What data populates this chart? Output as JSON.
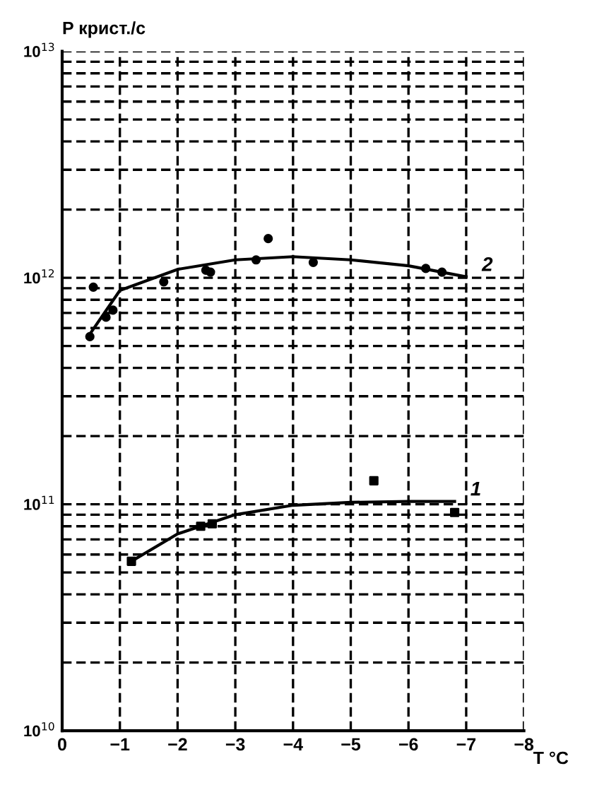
{
  "chart_data": {
    "type": "line",
    "ylabel": "P крист./с",
    "xlabel": "T °C",
    "log": "y",
    "grid": true,
    "xlim": [
      0,
      -8
    ],
    "xticks": [
      0,
      {
        "value": -1,
        "label": "−1"
      },
      {
        "value": -2,
        "label": "−2"
      },
      {
        "value": -3,
        "label": "−3"
      },
      {
        "value": -4,
        "label": "−4"
      },
      {
        "value": -5,
        "label": "−5"
      },
      {
        "value": -6,
        "label": "−6"
      },
      {
        "value": -7,
        "label": "−7"
      },
      {
        "value": -8,
        "label": "−8"
      }
    ],
    "ylim": [
      10000000000.0,
      10000000000000.0
    ],
    "yticks": [
      {
        "value": 10000000000.0,
        "label": "10$^{10}$"
      },
      {
        "value": 20000000000.0,
        "label": null
      },
      {
        "value": 30000000000.0,
        "label": null
      },
      {
        "value": 40000000000.0,
        "label": null
      },
      {
        "value": 50000000000.0,
        "label": null
      },
      {
        "value": 60000000000.0,
        "label": null
      },
      {
        "value": 70000000000.0,
        "label": null
      },
      {
        "value": 80000000000.0,
        "label": null
      },
      {
        "value": 90000000000.0,
        "label": null
      },
      {
        "value": 100000000000.0,
        "label": "10$^{11}$"
      },
      {
        "value": 200000000000.0,
        "label": null
      },
      {
        "value": 300000000000.0,
        "label": null
      },
      {
        "value": 400000000000.0,
        "label": null
      },
      {
        "value": 500000000000.0,
        "label": null
      },
      {
        "value": 600000000000.0,
        "label": null
      },
      {
        "value": 700000000000.0,
        "label": null
      },
      {
        "value": 800000000000.0,
        "label": null
      },
      {
        "value": 900000000000.0,
        "label": null
      },
      {
        "value": 1000000000000.0,
        "label": "10$^{12}$"
      },
      {
        "value": 2000000000000.0,
        "label": null
      },
      {
        "value": 3000000000000.0,
        "label": null
      },
      {
        "value": 4000000000000.0,
        "label": null
      },
      {
        "value": 5000000000000.0,
        "label": null
      },
      {
        "value": 6000000000000.0,
        "label": null
      },
      {
        "value": 7000000000000.0,
        "label": null
      },
      {
        "value": 8000000000000.0,
        "label": null
      },
      {
        "value": 9000000000000.0,
        "label": null
      },
      {
        "value": 10000000000000.0,
        "label": "10$^{13}$"
      }
    ],
    "series": [
      {
        "name": "1",
        "color": "#000000",
        "marker": "none",
        "line_style": "solid",
        "x": [
          -1.2,
          -2.0,
          -3.0,
          -4.0,
          -5.0,
          -6.0,
          -6.8
        ],
        "values": [
          56000000000.0,
          74000000000.0,
          90000000000.0,
          99000000000.0,
          102000000000.0,
          103000000000.0,
          103000000000.0
        ]
      },
      {
        "type": "scatter",
        "color": "#000000",
        "marker": "square",
        "x": [
          -1.2,
          -2.4,
          -2.6,
          -5.4,
          -6.8
        ],
        "values": [
          56000000000.0,
          80000000000.0,
          82000000000.0,
          127000000000.0,
          92000000000.0
        ]
      },
      {
        "name": "2",
        "color": "#000000",
        "marker": "none",
        "line_style": "solid",
        "x": [
          -0.45,
          -1.0,
          -2.0,
          -3.0,
          -4.0,
          -5.0,
          -6.0,
          -7.0
        ],
        "values": [
          550000000000.0,
          880000000000.0,
          1090000000000.0,
          1200000000000.0,
          1240000000000.0,
          1200000000000.0,
          1130000000000.0,
          1010000000000.0
        ]
      },
      {
        "type": "scatter",
        "color": "#000000",
        "marker": "circle",
        "x": [
          -0.48,
          -0.54,
          -0.76,
          -0.88,
          -1.76,
          -2.49,
          -2.57,
          -3.36,
          -3.57,
          -4.35,
          -6.3,
          -6.58
        ],
        "values": [
          550000000000.0,
          910000000000.0,
          670000000000.0,
          720000000000.0,
          960000000000.0,
          1080000000000.0,
          1060000000000.0,
          1200000000000.0,
          1490000000000.0,
          1170000000000.0,
          1100000000000.0,
          1060000000000.0
        ]
      }
    ]
  }
}
